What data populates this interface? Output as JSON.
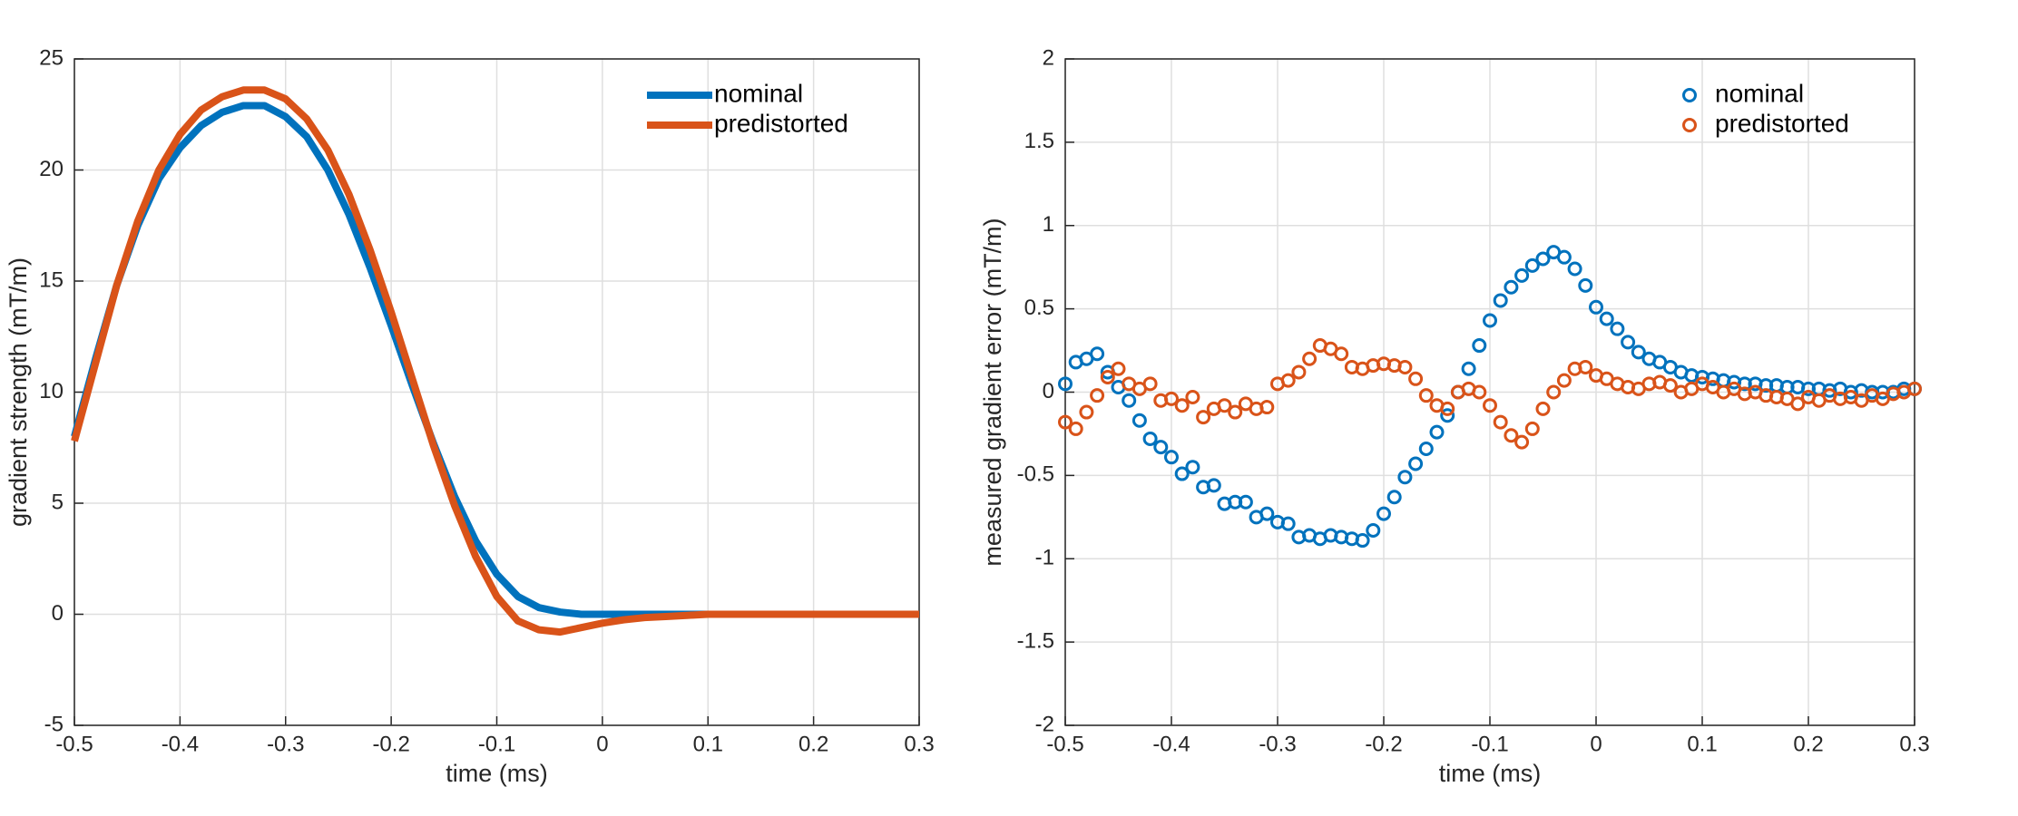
{
  "chart_data": [
    {
      "type": "line",
      "xlabel": "time (ms)",
      "ylabel": "gradient strength (mT/m)",
      "x": [
        -0.5,
        -0.48,
        -0.46,
        -0.44,
        -0.42,
        -0.4,
        -0.38,
        -0.36,
        -0.34,
        -0.32,
        -0.3,
        -0.28,
        -0.26,
        -0.24,
        -0.22,
        -0.2,
        -0.18,
        -0.16,
        -0.14,
        -0.12,
        -0.1,
        -0.08,
        -0.06,
        -0.04,
        -0.02,
        0,
        0.02,
        0.04,
        0.06,
        0.08,
        0.1,
        0.12,
        0.14,
        0.16,
        0.18,
        0.2,
        0.22,
        0.24,
        0.26,
        0.28,
        0.3
      ],
      "series": [
        {
          "name": "nominal",
          "color": "#0072bd",
          "values": [
            8,
            11.5,
            14.8,
            17.5,
            19.6,
            21.0,
            22.0,
            22.6,
            22.9,
            22.9,
            22.4,
            21.5,
            20.0,
            18.0,
            15.6,
            13.0,
            10.3,
            7.7,
            5.3,
            3.3,
            1.8,
            0.8,
            0.3,
            0.1,
            0,
            0,
            0,
            0,
            0,
            0,
            0,
            0,
            0,
            0,
            0,
            0,
            0,
            0,
            0,
            0,
            0
          ]
        },
        {
          "name": "predistorted",
          "color": "#d95319",
          "values": [
            7.8,
            11.3,
            14.8,
            17.7,
            20.0,
            21.6,
            22.7,
            23.3,
            23.6,
            23.6,
            23.2,
            22.3,
            20.9,
            18.9,
            16.4,
            13.6,
            10.6,
            7.6,
            4.9,
            2.6,
            0.8,
            -0.3,
            -0.7,
            -0.8,
            -0.6,
            -0.4,
            -0.25,
            -0.15,
            -0.1,
            -0.05,
            0,
            0,
            0,
            0,
            0,
            0,
            0,
            0,
            0,
            0,
            0
          ]
        }
      ],
      "xlim": [
        -0.5,
        0.3
      ],
      "xticks": [
        -0.5,
        -0.4,
        -0.3,
        -0.2,
        -0.1,
        0,
        0.1,
        0.2,
        0.3
      ],
      "ylim": [
        -5,
        25
      ],
      "yticks": [
        -5,
        0,
        5,
        10,
        15,
        20,
        25
      ],
      "grid": true,
      "legend": "northeast"
    },
    {
      "type": "scatter",
      "xlabel": "time (ms)",
      "ylabel": "measured gradient error (mT/m)",
      "x": [
        -0.5,
        -0.49,
        -0.48,
        -0.47,
        -0.46,
        -0.45,
        -0.44,
        -0.43,
        -0.42,
        -0.41,
        -0.4,
        -0.39,
        -0.38,
        -0.37,
        -0.36,
        -0.35,
        -0.34,
        -0.33,
        -0.32,
        -0.31,
        -0.3,
        -0.29,
        -0.28,
        -0.27,
        -0.26,
        -0.25,
        -0.24,
        -0.23,
        -0.22,
        -0.21,
        -0.2,
        -0.19,
        -0.18,
        -0.17,
        -0.16,
        -0.15,
        -0.14,
        -0.13,
        -0.12,
        -0.11,
        -0.1,
        -0.09,
        -0.08,
        -0.07,
        -0.06,
        -0.05,
        -0.04,
        -0.03,
        -0.02,
        -0.01,
        0,
        0.01,
        0.02,
        0.03,
        0.04,
        0.05,
        0.06,
        0.07,
        0.08,
        0.09,
        0.1,
        0.11,
        0.12,
        0.13,
        0.14,
        0.15,
        0.16,
        0.17,
        0.18,
        0.19,
        0.2,
        0.21,
        0.22,
        0.23,
        0.24,
        0.25,
        0.26,
        0.27,
        0.28,
        0.29,
        0.3
      ],
      "series": [
        {
          "name": "nominal",
          "color": "#0072bd",
          "values": [
            0.05,
            0.18,
            0.2,
            0.23,
            0.12,
            0.03,
            -0.05,
            -0.17,
            -0.28,
            -0.33,
            -0.39,
            -0.49,
            -0.45,
            -0.57,
            -0.56,
            -0.67,
            -0.66,
            -0.66,
            -0.75,
            -0.73,
            -0.78,
            -0.79,
            -0.87,
            -0.86,
            -0.88,
            -0.86,
            -0.87,
            -0.88,
            -0.89,
            -0.83,
            -0.73,
            -0.63,
            -0.51,
            -0.43,
            -0.34,
            -0.24,
            -0.14,
            0.0,
            0.14,
            0.28,
            0.43,
            0.55,
            0.63,
            0.7,
            0.76,
            0.8,
            0.84,
            0.81,
            0.74,
            0.64,
            0.51,
            0.44,
            0.38,
            0.3,
            0.24,
            0.2,
            0.18,
            0.15,
            0.12,
            0.1,
            0.09,
            0.08,
            0.07,
            0.06,
            0.05,
            0.05,
            0.04,
            0.04,
            0.03,
            0.03,
            0.02,
            0.02,
            0.01,
            0.02,
            0.0,
            0.01,
            0.0,
            0.0,
            0.0,
            0.02,
            0.02
          ]
        },
        {
          "name": "predistorted",
          "color": "#d95319",
          "values": [
            -0.18,
            -0.22,
            -0.12,
            -0.02,
            0.09,
            0.14,
            0.05,
            0.02,
            0.05,
            -0.05,
            -0.04,
            -0.08,
            -0.03,
            -0.15,
            -0.1,
            -0.08,
            -0.12,
            -0.07,
            -0.1,
            -0.09,
            0.05,
            0.07,
            0.12,
            0.2,
            0.28,
            0.26,
            0.23,
            0.15,
            0.14,
            0.16,
            0.17,
            0.16,
            0.15,
            0.08,
            -0.02,
            -0.08,
            -0.1,
            0.0,
            0.02,
            0.0,
            -0.08,
            -0.18,
            -0.26,
            -0.3,
            -0.22,
            -0.1,
            0.0,
            0.07,
            0.14,
            0.15,
            0.1,
            0.08,
            0.05,
            0.03,
            0.02,
            0.05,
            0.06,
            0.04,
            0.0,
            0.02,
            0.05,
            0.03,
            0.0,
            0.02,
            -0.01,
            0.0,
            -0.02,
            -0.03,
            -0.04,
            -0.07,
            -0.03,
            -0.05,
            -0.02,
            -0.04,
            -0.03,
            -0.05,
            -0.02,
            -0.04,
            -0.01,
            0.0,
            0.02
          ]
        }
      ],
      "xlim": [
        -0.5,
        0.3
      ],
      "xticks": [
        -0.5,
        -0.4,
        -0.3,
        -0.2,
        -0.1,
        0,
        0.1,
        0.2,
        0.3
      ],
      "ylim": [
        -2,
        2
      ],
      "yticks": [
        -2,
        -1.5,
        -1,
        -0.5,
        0,
        0.5,
        1,
        1.5,
        2
      ],
      "grid": true,
      "legend": "northeast"
    }
  ]
}
